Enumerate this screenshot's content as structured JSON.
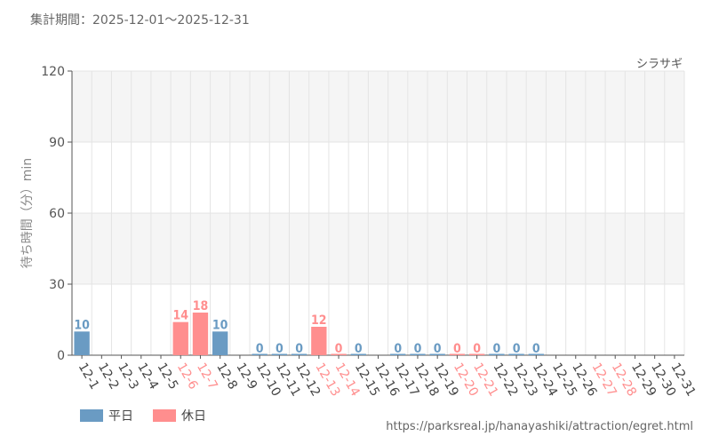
{
  "header": {
    "period": "集計期間：2025-12-01〜2025-12-31"
  },
  "colors": {
    "weekday": "#6a9bc3",
    "holiday": "#ff8e8e",
    "grid": "#e4e4e4",
    "band": "#f5f5f5"
  },
  "legend": {
    "weekday": "平日",
    "holiday": "休日"
  },
  "footer": {
    "url": "https://parksreal.jp/hanayashiki/attraction/egret.html"
  },
  "chart_data": {
    "type": "bar",
    "title": "",
    "series_name": "シラサギ",
    "xlabel": "",
    "ylabel": "待ち時間（分）min",
    "ylim": [
      0,
      120
    ],
    "yticks": [
      0,
      30,
      60,
      90,
      120
    ],
    "grid": true,
    "legend_position": "bottom-left",
    "categories": [
      "12-1",
      "12-2",
      "12-3",
      "12-4",
      "12-5",
      "12-6",
      "12-7",
      "12-8",
      "12-9",
      "12-10",
      "12-11",
      "12-12",
      "12-13",
      "12-14",
      "12-15",
      "12-16",
      "12-17",
      "12-18",
      "12-19",
      "12-20",
      "12-21",
      "12-22",
      "12-23",
      "12-24",
      "12-25",
      "12-26",
      "12-27",
      "12-28",
      "12-29",
      "12-30",
      "12-31"
    ],
    "values": [
      10,
      null,
      null,
      null,
      null,
      14,
      18,
      10,
      null,
      0,
      0,
      0,
      12,
      0,
      0,
      null,
      0,
      0,
      0,
      0,
      0,
      0,
      0,
      0,
      null,
      null,
      null,
      null,
      null,
      null,
      null
    ],
    "day_type": [
      "weekday",
      "weekday",
      "weekday",
      "weekday",
      "weekday",
      "holiday",
      "holiday",
      "weekday",
      "weekday",
      "weekday",
      "weekday",
      "weekday",
      "holiday",
      "holiday",
      "weekday",
      "weekday",
      "weekday",
      "weekday",
      "weekday",
      "holiday",
      "holiday",
      "weekday",
      "weekday",
      "weekday",
      "weekday",
      "weekday",
      "holiday",
      "holiday",
      "weekday",
      "weekday",
      "weekday"
    ]
  }
}
